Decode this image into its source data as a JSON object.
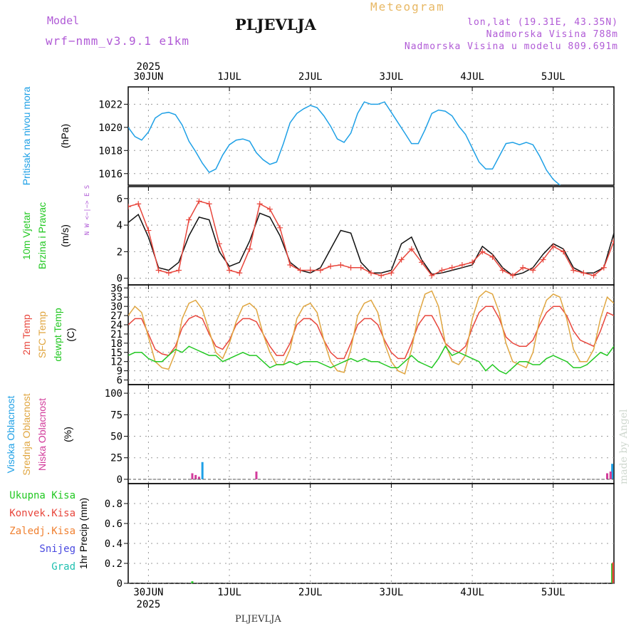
{
  "header": {
    "model_label": "Model",
    "model_name": "wrf−nmm_v3.9.1  e1km",
    "location": "PLJEVLJA",
    "product": "Meteogram",
    "coords": "lon,lat (19.31E, 43.35N)",
    "altitude": "Nadmorska Visina 788m",
    "model_altitude": "Nadmorska Visina u modelu 809.691m"
  },
  "footer": {
    "location": "PLJEVLJA",
    "credit": "made by Angel"
  },
  "colors": {
    "pressure": "#1ea0e6",
    "temp2m": "#e8463c",
    "sfc_temp": "#e0a640",
    "dewpoint": "#22c822",
    "high_cloud": "#1ea0e6",
    "mid_cloud": "#e0a640",
    "low_cloud": "#d23c9b",
    "wind_speed": "#111111",
    "wind_gust": "#e8463c",
    "axis_label_pressure": "#1ea0e6",
    "axis_label_wind": "#22c822"
  },
  "chart_data": [
    {
      "type": "line",
      "name": "pressure",
      "labels": {
        "line1": "Pritisak na nivou mora",
        "line2": "(hPa)"
      },
      "x_top": {
        "year": "2025",
        "ticks": [
          "30JUN",
          "1JUL",
          "2JUL",
          "3JUL",
          "4JUL",
          "5JUL"
        ]
      },
      "x_bottom": {
        "ticks": [
          "30JUN",
          "1JUL",
          "2JUL",
          "3JUL",
          "4JUL",
          "5JUL"
        ],
        "year": "2025"
      },
      "x_range_hours": [
        -6,
        138
      ],
      "ylim": [
        1015,
        1023.5
      ],
      "yticks": [
        1016,
        1018,
        1020,
        1022
      ],
      "grid": true,
      "series": [
        {
          "x": [
            -6,
            -4,
            -2,
            0,
            2,
            4,
            6,
            8,
            10,
            12,
            14,
            16,
            18,
            20,
            22,
            24,
            26,
            28,
            30,
            32,
            34,
            36,
            38,
            40,
            42,
            44,
            46,
            48,
            50,
            52,
            54,
            56,
            58,
            60,
            62,
            64,
            66,
            68,
            70,
            72,
            74,
            76,
            78,
            80,
            82,
            84,
            86,
            88,
            90,
            92,
            94,
            96,
            98,
            100,
            102,
            104,
            106,
            108,
            110,
            112,
            114,
            116,
            118,
            120,
            122,
            124,
            126,
            128,
            130,
            132,
            134,
            136,
            138
          ],
          "values": [
            1020.0,
            1019.2,
            1018.9,
            1019.6,
            1020.8,
            1021.2,
            1021.3,
            1021.1,
            1020.2,
            1018.8,
            1017.9,
            1016.9,
            1016.1,
            1016.4,
            1017.6,
            1018.5,
            1018.9,
            1019.0,
            1018.8,
            1017.8,
            1017.2,
            1016.8,
            1017.0,
            1018.6,
            1020.4,
            1021.2,
            1021.6,
            1021.9,
            1021.7,
            1021.0,
            1020.1,
            1019.0,
            1018.7,
            1019.5,
            1021.2,
            1022.2,
            1022.0,
            1022.0,
            1022.2,
            1021.3,
            1020.4,
            1019.5,
            1018.6,
            1018.6,
            1019.8,
            1021.2,
            1021.5,
            1021.4,
            1021.0,
            1020.1,
            1019.4,
            1018.2,
            1017.0,
            1016.4,
            1016.4,
            1017.5,
            1018.6,
            1018.7,
            1018.5,
            1018.7,
            1018.5,
            1017.5,
            1016.3,
            1015.5,
            1015.0,
            1014.6,
            1014.4,
            1014.4,
            1014.4,
            1014.4,
            1014.4,
            1014.4,
            1014.4
          ]
        }
      ]
    },
    {
      "type": "line",
      "name": "wind",
      "labels": {
        "line1": "10m Vjetar",
        "line2": "Brzina i Pravac",
        "unit": "(m/s)",
        "compass": "N  W <−|−> E  S"
      },
      "ylim": [
        -0.5,
        6.9
      ],
      "yticks": [
        0,
        2,
        4,
        6
      ],
      "grid": true,
      "series": [
        {
          "name": "speed",
          "x": [
            -6,
            -3,
            0,
            3,
            6,
            9,
            12,
            15,
            18,
            21,
            24,
            27,
            30,
            33,
            36,
            39,
            42,
            45,
            48,
            51,
            54,
            57,
            60,
            63,
            66,
            69,
            72,
            75,
            78,
            81,
            84,
            87,
            90,
            93,
            96,
            99,
            102,
            105,
            108,
            111,
            114,
            117,
            120,
            123,
            126,
            129,
            132,
            135,
            138
          ],
          "values": [
            4.2,
            4.8,
            3.1,
            0.8,
            0.6,
            1.2,
            3.2,
            4.6,
            4.4,
            2.0,
            0.9,
            1.2,
            2.8,
            4.9,
            4.6,
            3.2,
            1.2,
            0.6,
            0.4,
            0.8,
            2.2,
            3.6,
            3.4,
            1.2,
            0.4,
            0.4,
            0.6,
            2.6,
            3.1,
            1.4,
            0.3,
            0.4,
            0.6,
            0.8,
            1.0,
            2.4,
            1.8,
            0.8,
            0.2,
            0.4,
            0.8,
            1.8,
            2.6,
            2.2,
            0.8,
            0.4,
            0.4,
            0.8,
            3.4
          ]
        },
        {
          "name": "gust",
          "x": [
            -6,
            -3,
            0,
            3,
            6,
            9,
            12,
            15,
            18,
            21,
            24,
            27,
            30,
            33,
            36,
            39,
            42,
            45,
            48,
            51,
            54,
            57,
            60,
            63,
            66,
            69,
            72,
            75,
            78,
            81,
            84,
            87,
            90,
            93,
            96,
            99,
            102,
            105,
            108,
            111,
            114,
            117,
            120,
            123,
            126,
            129,
            132,
            135,
            138
          ],
          "values": [
            5.4,
            5.6,
            3.6,
            0.6,
            0.4,
            0.6,
            4.4,
            5.8,
            5.6,
            2.6,
            0.6,
            0.4,
            2.2,
            5.6,
            5.2,
            3.8,
            1.0,
            0.6,
            0.6,
            0.6,
            0.9,
            1.0,
            0.8,
            0.8,
            0.4,
            0.2,
            0.4,
            1.4,
            2.2,
            1.2,
            0.2,
            0.6,
            0.8,
            1.0,
            1.2,
            2.0,
            1.6,
            0.6,
            0.2,
            0.8,
            0.6,
            1.4,
            2.4,
            2.0,
            0.6,
            0.4,
            0.2,
            0.8,
            2.8
          ]
        }
      ]
    },
    {
      "type": "line",
      "name": "temperature",
      "labels": {
        "line1": "2m Temp",
        "line2": "SFC Temp",
        "line3": "dewpt Temp",
        "unit": "(C)"
      },
      "ylim": [
        4.5,
        37
      ],
      "yticks": [
        6,
        9,
        12,
        15,
        18,
        21,
        24,
        27,
        30,
        33,
        36
      ],
      "grid": true,
      "series": [
        {
          "name": "2m Temp",
          "x": [
            -6,
            -4,
            -2,
            0,
            2,
            4,
            6,
            8,
            10,
            12,
            14,
            16,
            18,
            20,
            22,
            24,
            26,
            28,
            30,
            32,
            34,
            36,
            38,
            40,
            42,
            44,
            46,
            48,
            50,
            52,
            54,
            56,
            58,
            60,
            62,
            64,
            66,
            68,
            70,
            72,
            74,
            76,
            78,
            80,
            82,
            84,
            86,
            88,
            90,
            92,
            94,
            96,
            98,
            100,
            102,
            104,
            106,
            108,
            110,
            112,
            114,
            116,
            118,
            120,
            122,
            124,
            126,
            128,
            130,
            132,
            134,
            136,
            138
          ],
          "values": [
            24,
            26,
            26,
            21,
            16,
            14.5,
            14,
            17,
            23,
            26,
            27,
            26,
            21,
            17,
            16,
            19,
            24,
            26,
            26,
            25,
            21,
            17,
            14,
            14,
            18,
            24,
            26,
            26,
            24,
            19,
            15,
            13,
            13,
            18,
            24,
            26,
            26,
            24,
            19,
            15,
            13,
            13,
            18,
            24,
            27,
            27,
            23,
            18,
            16,
            15,
            17,
            23,
            28,
            30,
            30,
            26,
            20,
            18,
            17,
            17,
            19,
            24,
            28,
            30,
            30,
            27,
            22,
            19,
            18,
            17,
            22,
            28,
            27
          ]
        },
        {
          "name": "SFC Temp",
          "x": [
            -6,
            -4,
            -2,
            0,
            2,
            4,
            6,
            8,
            10,
            12,
            14,
            16,
            18,
            20,
            22,
            24,
            26,
            28,
            30,
            32,
            34,
            36,
            38,
            40,
            42,
            44,
            46,
            48,
            50,
            52,
            54,
            56,
            58,
            60,
            62,
            64,
            66,
            68,
            70,
            72,
            74,
            76,
            78,
            80,
            82,
            84,
            86,
            88,
            90,
            92,
            94,
            96,
            98,
            100,
            102,
            104,
            106,
            108,
            110,
            112,
            114,
            116,
            118,
            120,
            122,
            124,
            126,
            128,
            130,
            132,
            134,
            136,
            138
          ],
          "values": [
            27,
            30,
            28,
            20,
            12,
            10,
            9.5,
            15,
            26,
            31,
            32,
            29,
            22,
            15,
            13,
            18,
            25,
            30,
            31,
            29,
            21,
            15,
            11,
            11,
            16,
            26,
            30,
            31,
            28,
            19,
            12,
            9,
            8.5,
            16,
            27,
            31,
            32,
            28,
            18,
            12,
            9,
            8,
            16,
            27,
            34,
            35,
            30,
            18,
            12,
            11,
            14,
            26,
            33,
            35,
            34,
            28,
            18,
            12,
            11,
            10,
            15,
            26,
            32,
            34,
            33,
            26,
            16,
            12,
            12,
            16,
            26,
            33,
            31
          ]
        },
        {
          "name": "dewpt Temp",
          "x": [
            -6,
            -4,
            -2,
            0,
            2,
            4,
            6,
            8,
            10,
            12,
            14,
            16,
            18,
            20,
            22,
            24,
            26,
            28,
            30,
            32,
            34,
            36,
            38,
            40,
            42,
            44,
            46,
            48,
            50,
            52,
            54,
            56,
            58,
            60,
            62,
            64,
            66,
            68,
            70,
            72,
            74,
            76,
            78,
            80,
            82,
            84,
            86,
            88,
            90,
            92,
            94,
            96,
            98,
            100,
            102,
            104,
            106,
            108,
            110,
            112,
            114,
            116,
            118,
            120,
            122,
            124,
            126,
            128,
            130,
            132,
            134,
            136,
            138
          ],
          "values": [
            14,
            15,
            15,
            13,
            12,
            12,
            14,
            16,
            15,
            17,
            16,
            15,
            14,
            14,
            12,
            13,
            14,
            15,
            14,
            14,
            12,
            10,
            11,
            11,
            12,
            11,
            12,
            12,
            12,
            11,
            10,
            11,
            12,
            13,
            12,
            13,
            12,
            12,
            11,
            10,
            10,
            12,
            14,
            12,
            11,
            10,
            13,
            17,
            14,
            15,
            14,
            13,
            12,
            9,
            11,
            9,
            8,
            10,
            12,
            12,
            11,
            11,
            13,
            14,
            13,
            12,
            10,
            10,
            11,
            13,
            15,
            14,
            17
          ]
        }
      ]
    },
    {
      "type": "bar",
      "name": "clouds",
      "labels": {
        "line1": "Visoka Oblacnost",
        "line2": "Srednja Oblacnost",
        "line3": "Niska Oblacnost",
        "unit": "(%)"
      },
      "ylim": [
        -5,
        110
      ],
      "yticks": [
        0,
        25,
        50,
        75,
        100
      ],
      "grid": true,
      "series": [
        {
          "name": "Visoka Oblacnost",
          "x": [
            16,
            137.5
          ],
          "values": [
            20,
            18
          ]
        },
        {
          "name": "Srednja Oblacnost",
          "x": [
            137
          ],
          "values": [
            7
          ]
        },
        {
          "name": "Niska Oblacnost",
          "x": [
            13,
            14,
            15,
            32,
            136,
            137
          ],
          "values": [
            7,
            5,
            3,
            9,
            7,
            9
          ]
        }
      ]
    },
    {
      "type": "bar",
      "name": "precipitation",
      "labels": {
        "line1": "Ukupna Kisa",
        "line2": "Konvek.Kisa",
        "line3": "Zaledj.Kisa",
        "line4": "Snijeg",
        "line5": "Grad",
        "unit": "1hr Precip (mm)"
      },
      "ylim": [
        0,
        1.0
      ],
      "yticks": [
        0,
        0.2,
        0.4,
        0.6,
        0.8
      ],
      "grid": true,
      "series": [
        {
          "name": "Ukupna Kisa",
          "x": [
            13,
            137.5
          ],
          "values": [
            0.02,
            0.2
          ]
        },
        {
          "name": "Konvek.Kisa",
          "x": [
            137.8
          ],
          "values": [
            0.21
          ]
        }
      ]
    }
  ]
}
